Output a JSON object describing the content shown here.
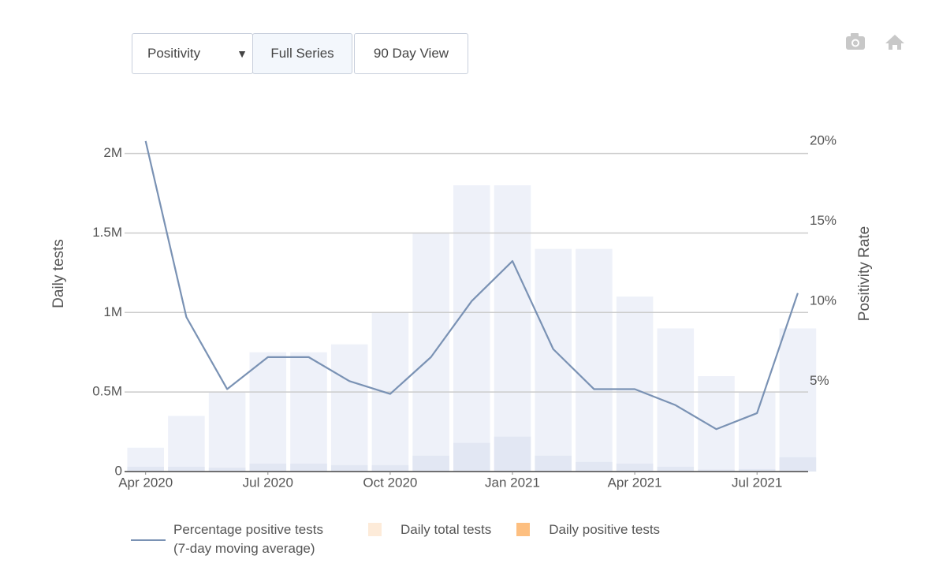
{
  "controls": {
    "select": "Positivity",
    "buttons": [
      "Full Series",
      "90 Day View"
    ]
  },
  "chart_data": {
    "type": "bar-line",
    "y_label": "Daily tests",
    "y2_label": "Positivity Rate",
    "x": [
      "2020-04",
      "2020-05",
      "2020-06",
      "2020-07",
      "2020-08",
      "2020-09",
      "2020-10",
      "2020-11",
      "2020-12",
      "2021-01",
      "2021-02",
      "2021-03",
      "2021-04",
      "2021-05",
      "2021-06",
      "2021-07",
      "2021-08"
    ],
    "xticks": [
      {
        "value": "2020-04",
        "label": "Apr 2020"
      },
      {
        "value": "2020-07",
        "label": "Jul 2020"
      },
      {
        "value": "2020-10",
        "label": "Oct 2020"
      },
      {
        "value": "2021-01",
        "label": "Jan 2021"
      },
      {
        "value": "2021-04",
        "label": "Apr 2021"
      },
      {
        "value": "2021-07",
        "label": "Jul 2021"
      }
    ],
    "ylim": [
      0,
      2370000
    ],
    "yticks": [
      0,
      {
        "value": 500000,
        "label": "0.5M"
      },
      {
        "value": 1000000,
        "label": "1M"
      },
      {
        "value": 1500000,
        "label": "1.5M"
      },
      {
        "value": 2000000,
        "label": "2M"
      }
    ],
    "y2lim": [
      -0.65,
      22.9
    ],
    "y2ticks": [
      {
        "value": 5,
        "label": "5%"
      },
      {
        "value": 10,
        "label": "10%"
      },
      {
        "value": 15,
        "label": "15%"
      },
      {
        "value": 20,
        "label": "20%"
      }
    ],
    "grid": true,
    "series": [
      {
        "name": "Percentage positive tests (7-day moving average)",
        "kind": "line",
        "axis": "y2",
        "color": "#7a92b4",
        "values": [
          20,
          9,
          4.5,
          6.5,
          6.5,
          5,
          4.2,
          6.5,
          10,
          12.5,
          7,
          4.5,
          4.5,
          3.5,
          2,
          3,
          10.5
        ]
      },
      {
        "name": "Daily total tests",
        "kind": "bar",
        "color": "#fdebd9",
        "bar_color": "#eef1f9",
        "values": [
          150000,
          350000,
          500000,
          750000,
          750000,
          800000,
          1000000,
          1500000,
          1800000,
          1800000,
          1400000,
          1400000,
          1100000,
          900000,
          600000,
          500000,
          900000
        ]
      },
      {
        "name": "Daily positive tests",
        "kind": "bar",
        "color": "#fdbf80",
        "bar_color": "#e2e7f3",
        "values": [
          30000,
          30000,
          25000,
          50000,
          50000,
          40000,
          40000,
          100000,
          180000,
          220000,
          100000,
          60000,
          50000,
          30000,
          12000,
          15000,
          90000
        ]
      }
    ]
  }
}
